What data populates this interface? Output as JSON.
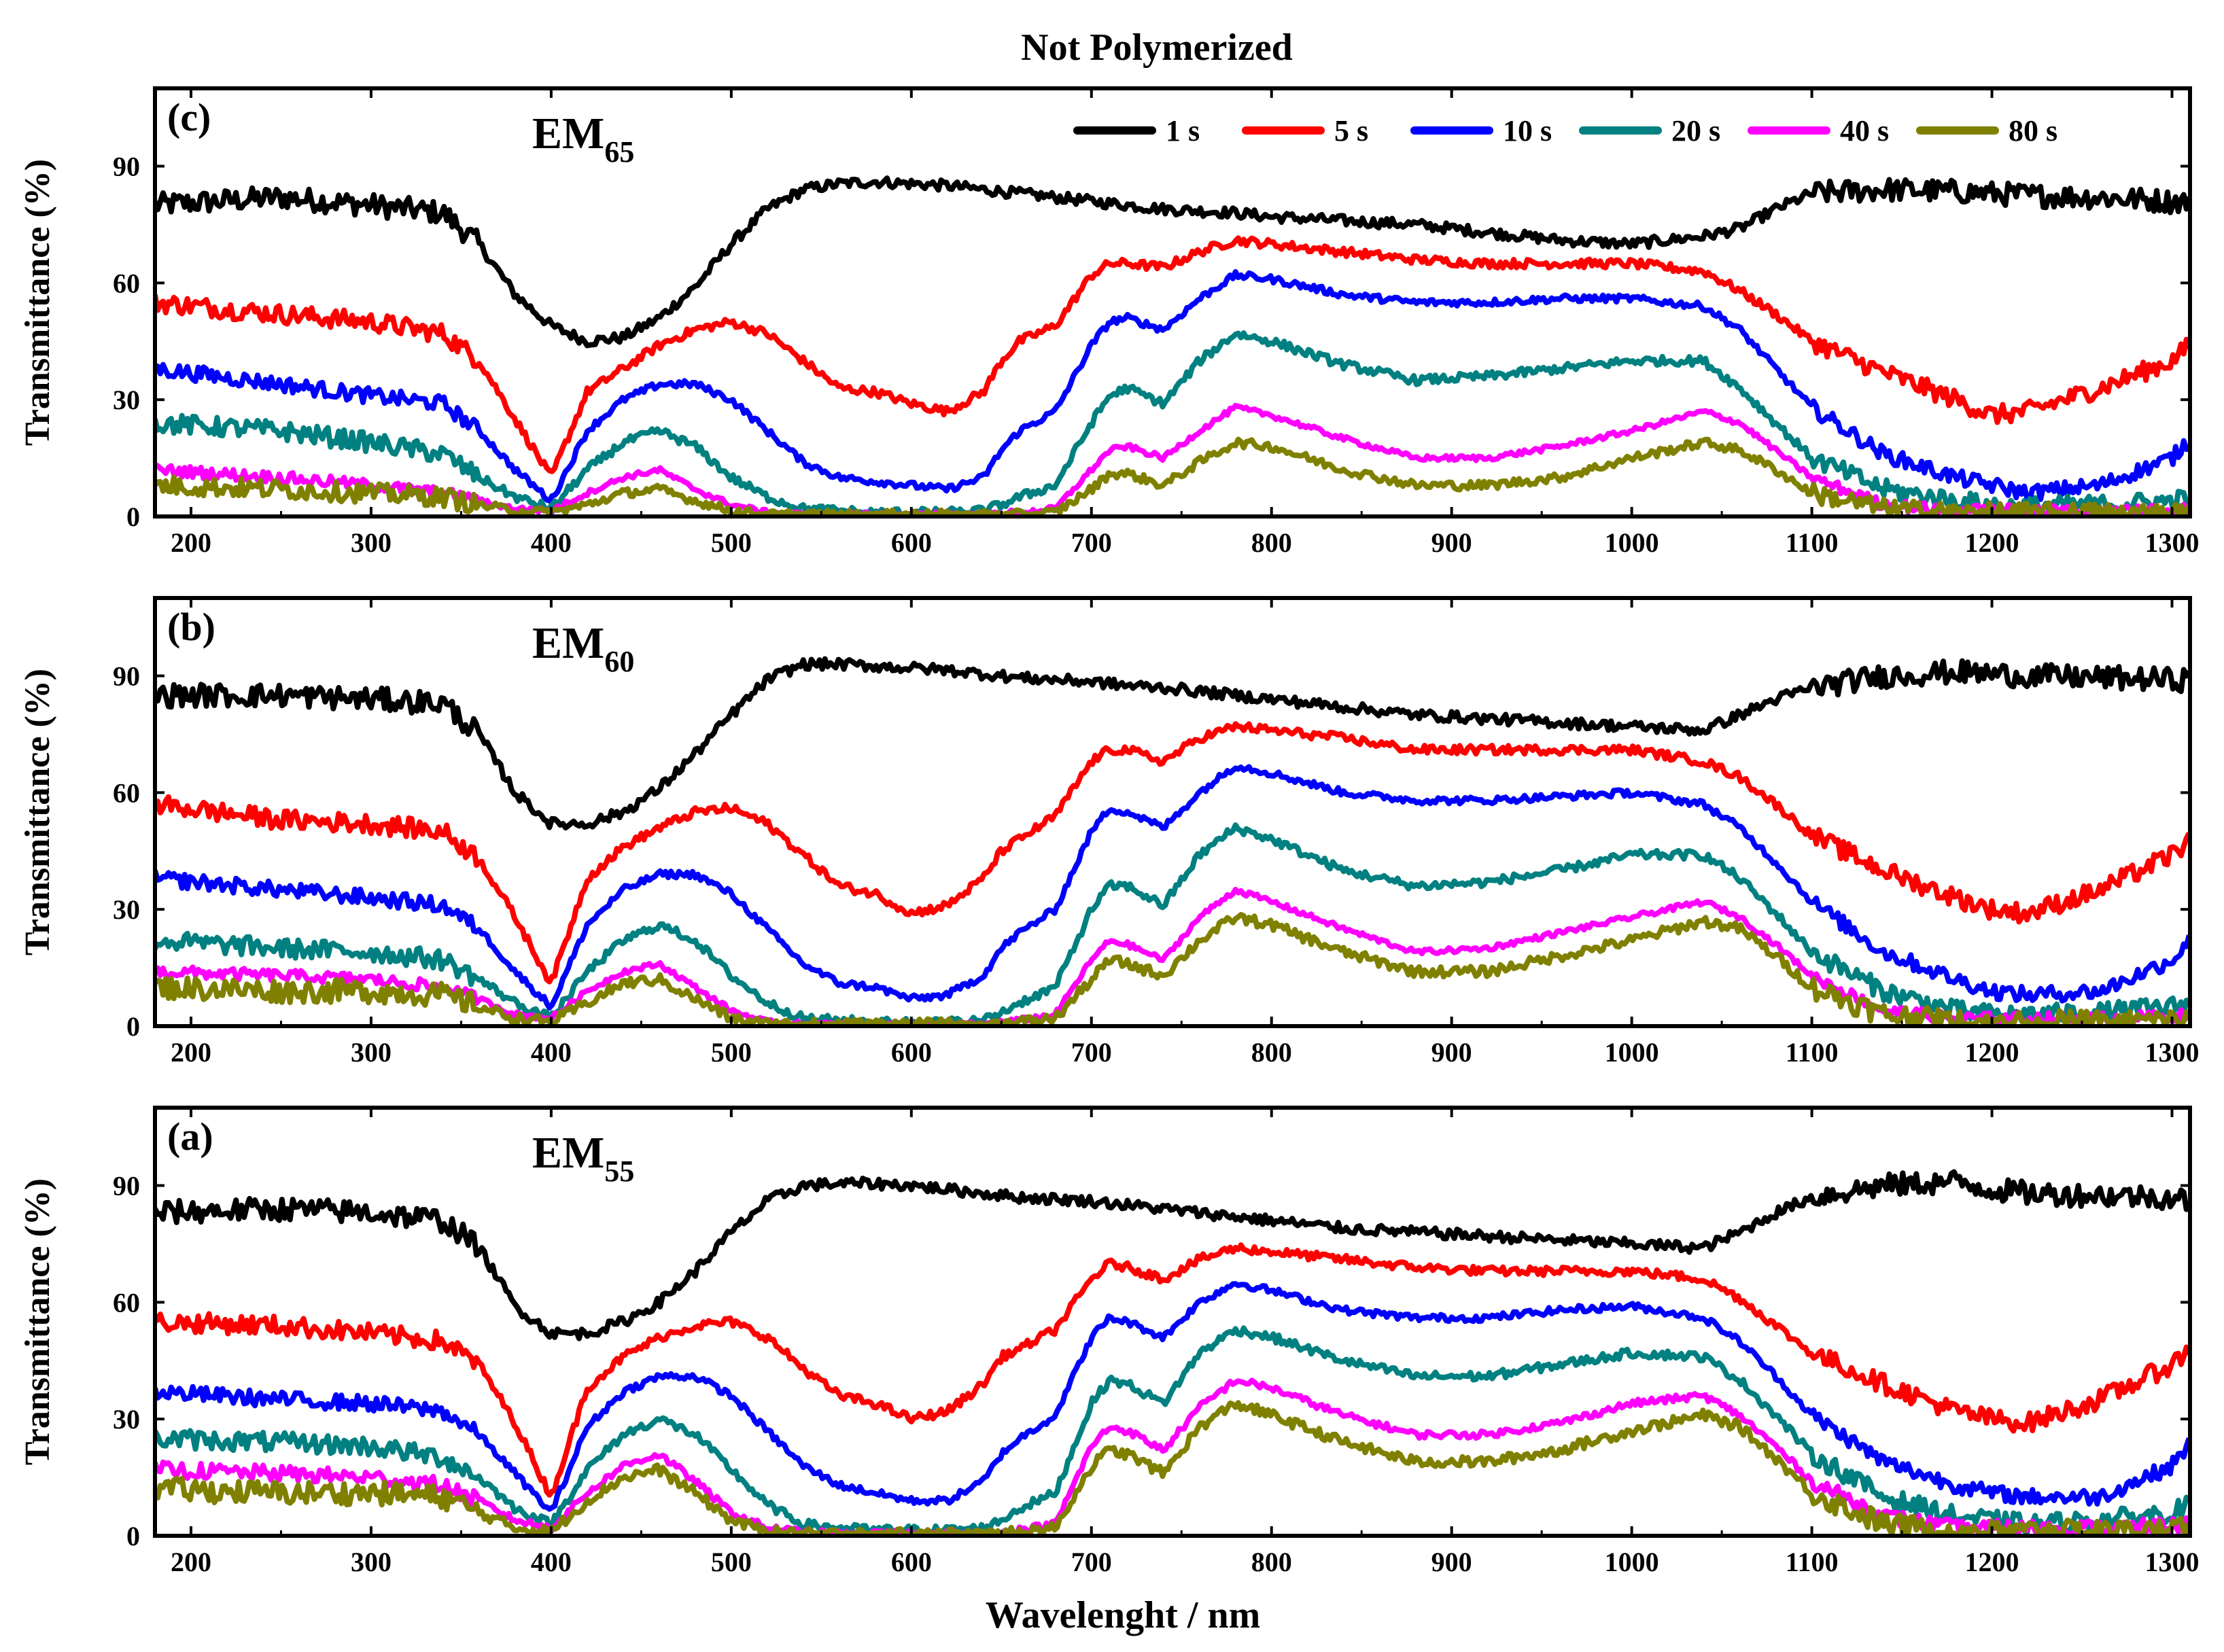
{
  "figure": {
    "title": "Not Polymerized",
    "xlabel": "Wavelenght / nm",
    "ylabel": "Transmittance (%)"
  },
  "legend": [
    {
      "label": "1 s",
      "color": "#000000"
    },
    {
      "label": "5 s",
      "color": "#ff0000"
    },
    {
      "label": "10 s",
      "color": "#0000ff"
    },
    {
      "label": "20 s",
      "color": "#008080"
    },
    {
      "label": "40 s",
      "color": "#ff00ff"
    },
    {
      "label": "80 s",
      "color": "#808000"
    }
  ],
  "chart_data": [
    {
      "type": "line",
      "panel": "(c)",
      "sample": {
        "base": "EM",
        "sub": "65"
      },
      "xlabel": "Wavelenght / nm",
      "ylabel": "Transmittance (%)",
      "xlim": [
        180,
        1310
      ],
      "ylim": [
        0,
        110
      ],
      "xticks": [
        200,
        300,
        400,
        500,
        600,
        700,
        800,
        900,
        1000,
        1100,
        1200,
        1300
      ],
      "yticks": [
        0,
        30,
        60,
        90
      ],
      "x": [
        180,
        250,
        300,
        340,
        360,
        380,
        400,
        420,
        440,
        460,
        480,
        500,
        520,
        540,
        560,
        580,
        600,
        620,
        640,
        650,
        660,
        680,
        700,
        710,
        720,
        740,
        760,
        780,
        800,
        840,
        880,
        920,
        960,
        1000,
        1040,
        1060,
        1080,
        1100,
        1140,
        1180,
        1200,
        1220,
        1260,
        1300,
        1310
      ],
      "series": [
        {
          "name": "1 s",
          "color": "#000000",
          "noise": 3,
          "values": [
            80,
            82,
            80,
            78,
            70,
            57,
            49,
            45,
            46,
            51,
            59,
            70,
            79,
            84,
            85.5,
            86,
            85.5,
            85,
            84,
            83.5,
            83,
            82,
            81,
            80.5,
            80,
            79,
            78.5,
            78,
            77,
            76,
            75,
            73,
            71,
            70,
            72,
            74,
            79,
            83,
            84,
            83.5,
            83,
            82.5,
            82,
            81,
            81
          ]
        },
        {
          "name": "5 s",
          "color": "#ff0000",
          "noise": 2.5,
          "values": [
            55,
            52,
            50,
            47,
            40,
            25,
            10,
            32,
            38,
            44,
            48,
            50,
            47,
            40,
            33,
            32,
            29,
            27,
            32,
            40,
            45,
            49,
            62,
            65,
            65,
            64,
            68,
            71,
            70,
            68,
            66,
            65,
            65,
            65,
            63,
            58,
            52,
            45,
            37,
            30,
            26,
            27,
            33,
            40,
            44
          ]
        },
        {
          "name": "10 s",
          "color": "#0000ff",
          "noise": 2,
          "values": [
            38,
            34,
            31,
            29,
            22,
            12,
            4,
            22,
            30,
            34,
            34,
            30,
            22,
            14,
            10,
            9,
            8,
            7,
            10,
            17,
            22,
            27,
            44,
            50,
            51,
            48,
            56,
            62,
            61,
            57,
            55,
            55,
            56,
            56,
            54,
            48,
            38,
            28,
            16,
            10,
            8,
            6,
            8,
            15,
            20
          ]
        },
        {
          "name": "20 s",
          "color": "#008080",
          "noise": 2.5,
          "values": [
            24,
            22,
            19,
            16,
            10,
            5,
            2,
            12,
            19,
            22,
            18,
            10,
            5,
            2,
            1.5,
            1,
            1,
            1,
            1.5,
            3,
            5,
            8,
            24,
            31,
            33,
            29,
            40,
            47,
            45,
            39,
            35,
            36,
            38,
            40,
            40,
            33,
            24,
            15,
            7,
            4,
            3,
            2.5,
            3,
            4,
            5
          ]
        },
        {
          "name": "40 s",
          "color": "#ff00ff",
          "noise": 1.5,
          "values": [
            12,
            10,
            8,
            6,
            4,
            2,
            1.5,
            6,
            10,
            12,
            7,
            3,
            1,
            0.5,
            0.5,
            0.5,
            0.5,
            0.5,
            0.5,
            1,
            1,
            2,
            12,
            17,
            18,
            15,
            22,
            28,
            26,
            20,
            15,
            15,
            18,
            22,
            27,
            24,
            17,
            10,
            3,
            1.5,
            1.5,
            1.5,
            1.5,
            2,
            2
          ]
        },
        {
          "name": "80 s",
          "color": "#808000",
          "noise": 2.5,
          "values": [
            8,
            7,
            6,
            5,
            3,
            1.5,
            1,
            3,
            6,
            7,
            4,
            1.5,
            0.5,
            0.5,
            0.5,
            0.5,
            0.5,
            0.5,
            0.5,
            0.5,
            0.5,
            1,
            7,
            11,
            11,
            8,
            14,
            19,
            18,
            12,
            8,
            8,
            10,
            15,
            19,
            17,
            12,
            6,
            2,
            1,
            1,
            1,
            1,
            1,
            1
          ]
        }
      ]
    },
    {
      "type": "line",
      "panel": "(b)",
      "sample": {
        "base": "EM",
        "sub": "60"
      },
      "xlabel": "Wavelenght / nm",
      "ylabel": "Transmittance (%)",
      "xlim": [
        180,
        1310
      ],
      "ylim": [
        0,
        110
      ],
      "xticks": [
        200,
        300,
        400,
        500,
        600,
        700,
        800,
        900,
        1000,
        1100,
        1200,
        1300
      ],
      "yticks": [
        0,
        30,
        60,
        90
      ],
      "x": [
        180,
        250,
        300,
        340,
        360,
        380,
        400,
        420,
        440,
        460,
        480,
        500,
        520,
        540,
        560,
        580,
        600,
        620,
        640,
        650,
        660,
        680,
        700,
        710,
        720,
        740,
        760,
        780,
        800,
        840,
        880,
        920,
        960,
        1000,
        1040,
        1060,
        1080,
        1100,
        1140,
        1180,
        1200,
        1220,
        1260,
        1300,
        1310
      ],
      "series": [
        {
          "name": "1 s",
          "color": "#000000",
          "noise": 3,
          "values": [
            85,
            85,
            84,
            83,
            75,
            60,
            52,
            52,
            55,
            61,
            70,
            80,
            89,
            93,
            93,
            92.5,
            92,
            91.5,
            90.5,
            90,
            89.5,
            89,
            88.5,
            88,
            87.5,
            87,
            86,
            85,
            84,
            82,
            80,
            79,
            78,
            77,
            76,
            80,
            84,
            87,
            90,
            91,
            90.5,
            90,
            89.5,
            89,
            89
          ]
        },
        {
          "name": "5 s",
          "color": "#ff0000",
          "noise": 2.5,
          "values": [
            57,
            53,
            52,
            50,
            43,
            28,
            11,
            38,
            46,
            51,
            55,
            56,
            52,
            44,
            36,
            34,
            29,
            31,
            38,
            45,
            48,
            54,
            68,
            71,
            71,
            68,
            74,
            77,
            76,
            74,
            71,
            71,
            71,
            71,
            68,
            64,
            57,
            49,
            40,
            33,
            30,
            29,
            35,
            44,
            48
          ]
        },
        {
          "name": "10 s",
          "color": "#0000ff",
          "noise": 2,
          "values": [
            38,
            35,
            33,
            31,
            25,
            14,
            5,
            26,
            35,
            39,
            39,
            34,
            25,
            16,
            11,
            10,
            7,
            8,
            13,
            20,
            24,
            30,
            50,
            56,
            55,
            51,
            60,
            67,
            65,
            60,
            58,
            58,
            59,
            60,
            57,
            51,
            42,
            32,
            19,
            12,
            9,
            8,
            9,
            17,
            22
          ]
        },
        {
          "name": "20 s",
          "color": "#008080",
          "noise": 2.5,
          "values": [
            22,
            20,
            19,
            17,
            12,
            6,
            2,
            14,
            22,
            26,
            22,
            13,
            6,
            2,
            1.5,
            1,
            1,
            1,
            1.5,
            3.5,
            6,
            10,
            30,
            36,
            36,
            31,
            44,
            51,
            48,
            40,
            36,
            37,
            40,
            44,
            44,
            38,
            29,
            19,
            9,
            4,
            3,
            3,
            3.5,
            5,
            6
          ]
        },
        {
          "name": "40 s",
          "color": "#ff00ff",
          "noise": 1.5,
          "values": [
            14,
            13,
            12,
            10,
            7,
            3,
            2,
            9,
            14,
            16,
            10,
            4,
            1,
            0.5,
            0.5,
            0.5,
            0.5,
            0.5,
            0.5,
            1,
            1.5,
            3,
            17,
            22,
            21,
            17,
            28,
            35,
            32,
            25,
            19,
            20,
            24,
            28,
            32,
            28,
            21,
            13,
            4,
            2,
            2,
            2,
            2,
            2.5,
            3
          ]
        },
        {
          "name": "80 s",
          "color": "#808000",
          "noise": 3,
          "values": [
            10,
            9,
            9,
            8,
            5,
            2,
            1,
            6,
            11,
            12,
            7,
            2,
            0.5,
            0.5,
            0.5,
            0.5,
            0.5,
            0.5,
            0.5,
            0.5,
            1,
            2,
            12,
            17,
            16,
            13,
            22,
            28,
            26,
            19,
            14,
            14,
            18,
            22,
            27,
            25,
            18,
            10,
            3,
            1,
            1,
            1,
            1,
            1.5,
            1.5
          ]
        }
      ]
    },
    {
      "type": "line",
      "panel": "(a)",
      "sample": {
        "base": "EM",
        "sub": "55"
      },
      "xlabel": "Wavelenght / nm",
      "ylabel": "Transmittance (%)",
      "xlim": [
        180,
        1310
      ],
      "ylim": [
        0,
        110
      ],
      "xticks": [
        200,
        300,
        400,
        500,
        600,
        700,
        800,
        900,
        1000,
        1100,
        1200,
        1300
      ],
      "yticks": [
        0,
        30,
        60,
        90
      ],
      "x": [
        180,
        250,
        300,
        340,
        360,
        380,
        400,
        420,
        440,
        460,
        480,
        500,
        520,
        540,
        560,
        580,
        600,
        620,
        640,
        650,
        660,
        680,
        700,
        710,
        720,
        740,
        760,
        780,
        800,
        840,
        880,
        920,
        960,
        1000,
        1040,
        1060,
        1080,
        1100,
        1140,
        1180,
        1200,
        1220,
        1260,
        1300,
        1310
      ],
      "series": [
        {
          "name": "1 s",
          "color": "#000000",
          "noise": 3,
          "values": [
            83,
            84,
            83,
            81,
            74,
            59,
            52,
            52,
            55,
            60,
            68,
            78,
            86,
            90,
            90.5,
            90.5,
            90,
            89,
            88,
            87.5,
            87,
            86.5,
            86,
            85.5,
            85,
            84,
            83,
            82,
            81,
            79,
            78,
            77,
            76,
            75,
            74,
            78,
            83,
            87,
            90,
            91,
            89,
            88,
            87.5,
            87,
            86
          ]
        },
        {
          "name": "5 s",
          "color": "#ff0000",
          "noise": 2.5,
          "values": [
            55,
            54,
            52,
            50,
            44,
            29,
            10,
            38,
            46,
            51,
            54,
            55,
            51,
            43,
            36,
            34,
            30,
            32,
            39,
            46,
            48,
            53,
            66,
            70,
            69,
            66,
            71,
            74,
            73,
            71,
            69,
            68,
            68,
            68,
            66,
            61,
            54,
            47,
            39,
            32,
            30,
            29,
            35,
            44,
            48
          ]
        },
        {
          "name": "10 s",
          "color": "#0000ff",
          "noise": 2,
          "values": [
            37,
            35,
            34,
            32,
            26,
            16,
            6,
            28,
            37,
            41,
            41,
            36,
            27,
            18,
            13,
            11,
            9,
            9,
            14,
            21,
            25,
            31,
            51,
            56,
            55,
            51,
            60,
            65,
            63,
            58,
            56,
            56,
            58,
            59,
            56,
            50,
            41,
            31,
            19,
            13,
            11,
            10,
            10,
            18,
            24
          ]
        },
        {
          "name": "20 s",
          "color": "#008080",
          "noise": 2.5,
          "values": [
            25,
            24,
            23,
            20,
            15,
            7,
            3,
            17,
            26,
            30,
            26,
            17,
            8,
            3,
            2,
            1.5,
            1.5,
            1.5,
            2,
            4,
            7,
            11,
            34,
            40,
            39,
            34,
            47,
            53,
            51,
            45,
            41,
            41,
            44,
            47,
            46,
            40,
            31,
            21,
            10,
            5,
            4,
            3,
            4,
            6,
            8
          ]
        },
        {
          "name": "40 s",
          "color": "#ff00ff",
          "noise": 2,
          "values": [
            17,
            16,
            15,
            13,
            9,
            4,
            2,
            11,
            18,
            21,
            14,
            6,
            2,
            1,
            0.5,
            0.5,
            0.5,
            0.5,
            0.5,
            1,
            1.5,
            3,
            23,
            28,
            27,
            22,
            33,
            40,
            38,
            31,
            26,
            26,
            29,
            34,
            36,
            31,
            23,
            14,
            5,
            2,
            2,
            2,
            2,
            2.5,
            3
          ]
        },
        {
          "name": "80 s",
          "color": "#808000",
          "noise": 3,
          "values": [
            12,
            11,
            11,
            10,
            6,
            2,
            1,
            9,
            15,
            17,
            11,
            4,
            1,
            0.5,
            0.5,
            0.5,
            0.5,
            0.5,
            0.5,
            0.5,
            1,
            2,
            18,
            22,
            21,
            16,
            28,
            34,
            31,
            24,
            19,
            19,
            22,
            27,
            31,
            28,
            20,
            11,
            3,
            1,
            1,
            1,
            1,
            1.5,
            1.5
          ]
        }
      ]
    }
  ]
}
